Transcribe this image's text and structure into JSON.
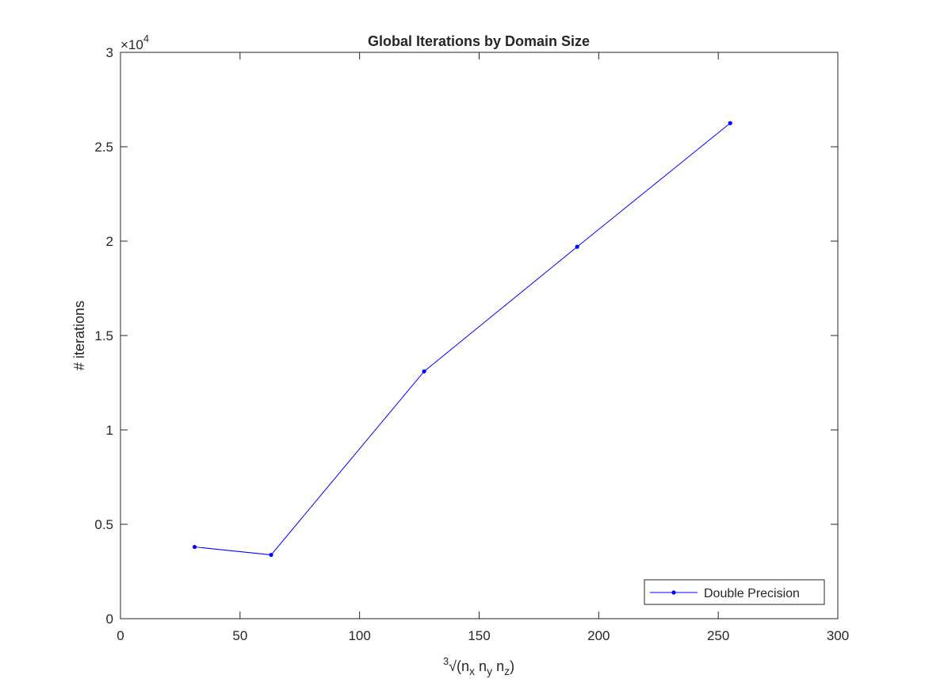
{
  "chart_data": {
    "type": "line",
    "title": "Global Iterations by Domain Size",
    "xlabel": {
      "root_index": "3",
      "root_sign": "√",
      "open_paren": "(",
      "parts": [
        {
          "base": "n",
          "sub": "x"
        },
        {
          "base": "n",
          "sub": "y"
        },
        {
          "base": "n",
          "sub": "z"
        }
      ],
      "close_paren": ")"
    },
    "ylabel": "# iterations",
    "y_multiplier": {
      "base": "×10",
      "exponent": "4"
    },
    "xlim": [
      0,
      300
    ],
    "ylim": [
      0,
      30000
    ],
    "xticks": [
      0,
      50,
      100,
      150,
      200,
      250,
      300
    ],
    "xtick_labels": [
      "0",
      "50",
      "100",
      "150",
      "200",
      "250",
      "300"
    ],
    "yticks": [
      0,
      5000,
      10000,
      15000,
      20000,
      25000,
      30000
    ],
    "ytick_labels": [
      "0",
      "0.5",
      "1",
      "1.5",
      "2",
      "2.5",
      "3"
    ],
    "grid": false,
    "legend_position": "bottom-right",
    "series": [
      {
        "name": "Double Precision",
        "color": "#0000ff",
        "marker": "dot",
        "x": [
          31,
          63,
          127,
          191,
          255
        ],
        "y": [
          3800,
          3380,
          13100,
          19700,
          26250
        ]
      }
    ]
  }
}
